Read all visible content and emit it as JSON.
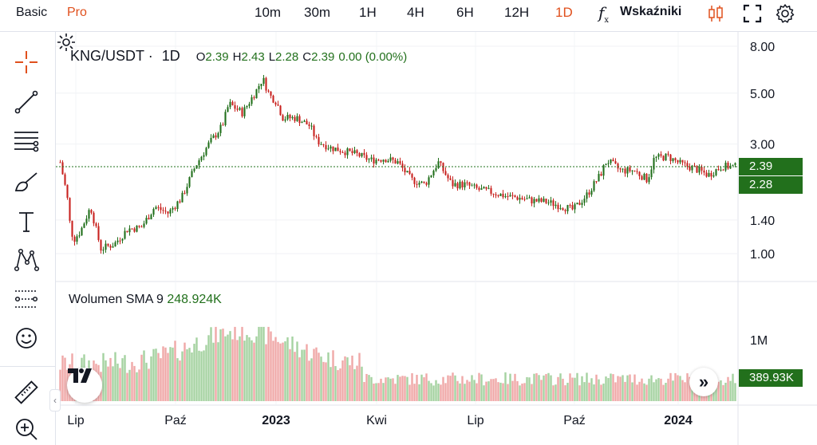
{
  "toolbar": {
    "modes": [
      "Basic",
      "Pro"
    ],
    "timeframes": [
      "10m",
      "30m",
      "1H",
      "4H",
      "6H",
      "12H",
      "1D"
    ],
    "active_timeframe": "1D",
    "indicators_label": "Wskaźniki",
    "fx_label": "f",
    "fx_sub": "x"
  },
  "legend": {
    "symbol": "KNG/USDT",
    "interval": "1D",
    "open_key": "O",
    "open": "2.39",
    "high_key": "H",
    "high": "2.43",
    "low_key": "L",
    "low": "2.28",
    "close_key": "C",
    "close": "2.39",
    "change": "0.00 (0.00%)"
  },
  "volume_legend": {
    "label": "Wolumen SMA 9",
    "value": "248.924K"
  },
  "price_tags": {
    "close": "2.39",
    "low": "2.28",
    "volume": "389.93K"
  },
  "colors": {
    "accent": "#e0501d",
    "up": "#22701c",
    "down": "#c8221f",
    "up_volume": "#a5d2a1",
    "down_volume": "#f0a8a7",
    "tag_green": "#22701c"
  },
  "left_tools": [
    "crosshair-icon",
    "trend-line-icon",
    "fib-retracement-icon",
    "brush-icon",
    "text-icon",
    "pattern-icon",
    "forecast-icon",
    "emoji-icon",
    "ruler-icon",
    "zoom-in-icon"
  ],
  "chart_data": {
    "type": "candlestick",
    "symbol": "KNG/USDT",
    "interval": "1D",
    "y_scale": "log",
    "y_ticks": [
      8.0,
      5.0,
      3.0,
      1.4,
      1.0
    ],
    "y_tick_labels": [
      "8.00",
      "5.00",
      "3.00",
      "1.40",
      "1.00"
    ],
    "x_tick_labels": [
      "Lip",
      "Paź",
      "2023",
      "Kwi",
      "Lip",
      "Paź",
      "2024"
    ],
    "volume_ticks": [
      "1M"
    ],
    "price_anchors": [
      {
        "t": 0.0,
        "p": 2.5
      },
      {
        "t": 0.01,
        "p": 1.8
      },
      {
        "t": 0.015,
        "p": 1.3
      },
      {
        "t": 0.02,
        "p": 1.15
      },
      {
        "t": 0.03,
        "p": 1.25
      },
      {
        "t": 0.045,
        "p": 1.6
      },
      {
        "t": 0.06,
        "p": 1.05
      },
      {
        "t": 0.08,
        "p": 1.1
      },
      {
        "t": 0.1,
        "p": 1.28
      },
      {
        "t": 0.12,
        "p": 1.3
      },
      {
        "t": 0.14,
        "p": 1.6
      },
      {
        "t": 0.16,
        "p": 1.5
      },
      {
        "t": 0.18,
        "p": 1.75
      },
      {
        "t": 0.2,
        "p": 2.4
      },
      {
        "t": 0.22,
        "p": 3.0
      },
      {
        "t": 0.24,
        "p": 3.6
      },
      {
        "t": 0.25,
        "p": 4.5
      },
      {
        "t": 0.27,
        "p": 4.1
      },
      {
        "t": 0.29,
        "p": 5.1
      },
      {
        "t": 0.3,
        "p": 5.8
      },
      {
        "t": 0.31,
        "p": 4.9
      },
      {
        "t": 0.32,
        "p": 4.6
      },
      {
        "t": 0.33,
        "p": 3.9
      },
      {
        "t": 0.35,
        "p": 3.9
      },
      {
        "t": 0.37,
        "p": 3.6
      },
      {
        "t": 0.38,
        "p": 3.1
      },
      {
        "t": 0.4,
        "p": 2.9
      },
      {
        "t": 0.42,
        "p": 2.8
      },
      {
        "t": 0.44,
        "p": 2.7
      },
      {
        "t": 0.46,
        "p": 2.55
      },
      {
        "t": 0.48,
        "p": 2.6
      },
      {
        "t": 0.5,
        "p": 2.5
      },
      {
        "t": 0.52,
        "p": 2.1
      },
      {
        "t": 0.54,
        "p": 2.0
      },
      {
        "t": 0.56,
        "p": 2.5
      },
      {
        "t": 0.58,
        "p": 2.0
      },
      {
        "t": 0.6,
        "p": 2.0
      },
      {
        "t": 0.62,
        "p": 1.9
      },
      {
        "t": 0.64,
        "p": 1.85
      },
      {
        "t": 0.66,
        "p": 1.78
      },
      {
        "t": 0.68,
        "p": 1.75
      },
      {
        "t": 0.7,
        "p": 1.7
      },
      {
        "t": 0.72,
        "p": 1.68
      },
      {
        "t": 0.74,
        "p": 1.62
      },
      {
        "t": 0.76,
        "p": 1.55
      },
      {
        "t": 0.78,
        "p": 1.8
      },
      {
        "t": 0.8,
        "p": 2.2
      },
      {
        "t": 0.81,
        "p": 2.55
      },
      {
        "t": 0.83,
        "p": 2.3
      },
      {
        "t": 0.85,
        "p": 2.3
      },
      {
        "t": 0.87,
        "p": 2.1
      },
      {
        "t": 0.88,
        "p": 2.6
      },
      {
        "t": 0.9,
        "p": 2.65
      },
      {
        "t": 0.92,
        "p": 2.45
      },
      {
        "t": 0.94,
        "p": 2.35
      },
      {
        "t": 0.96,
        "p": 2.2
      },
      {
        "t": 0.98,
        "p": 2.4
      },
      {
        "t": 1.0,
        "p": 2.39
      }
    ],
    "reference_price": 2.39,
    "volume_max_label": "1M"
  }
}
